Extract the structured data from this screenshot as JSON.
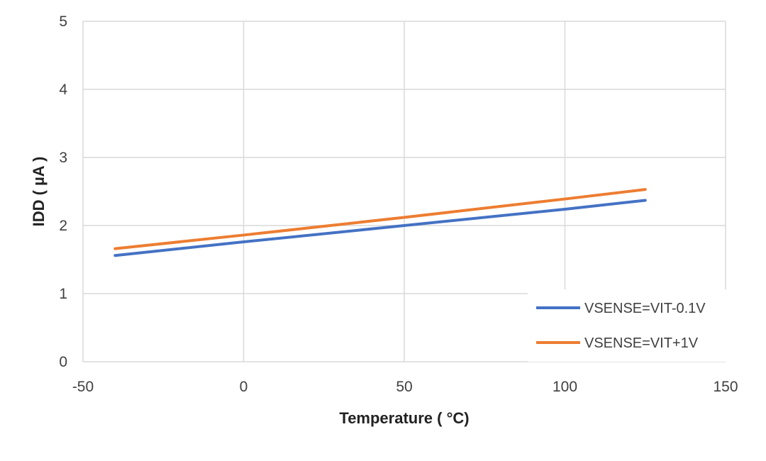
{
  "chart_data": {
    "type": "line",
    "title": "",
    "xlabel": "Temperature ( °C)",
    "ylabel": "IDD ( µA )",
    "xlim": [
      -50,
      150
    ],
    "ylim": [
      0,
      5
    ],
    "xticks": [
      -50,
      0,
      50,
      100,
      150
    ],
    "yticks": [
      0,
      1,
      2,
      3,
      4,
      5
    ],
    "grid": true,
    "legend_position": "bottom-right",
    "series": [
      {
        "name": "VSENSE=VIT-0.1V",
        "color": "#4472C4",
        "x": [
          -40,
          0,
          50,
          100,
          125
        ],
        "y": [
          1.56,
          1.76,
          2.0,
          2.24,
          2.37
        ]
      },
      {
        "name": "VSENSE=VIT+1V",
        "color": "#ED7D31",
        "x": [
          -40,
          0,
          50,
          100,
          125
        ],
        "y": [
          1.66,
          1.86,
          2.12,
          2.39,
          2.53
        ]
      }
    ]
  }
}
